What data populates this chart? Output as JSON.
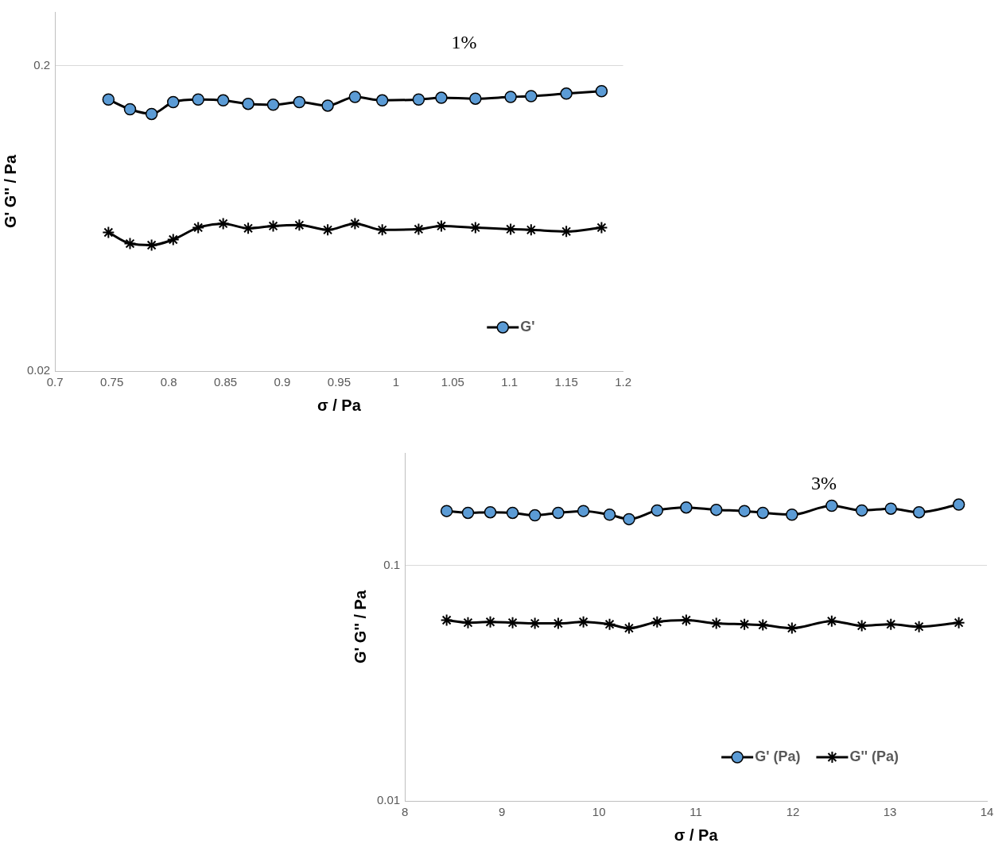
{
  "chart_data": [
    {
      "type": "line",
      "title": "1%",
      "xlabel": "σ / Pa",
      "ylabel": "G' G'' / Pa",
      "log": "y",
      "grid": "y",
      "legend": "bottom right",
      "xlim": [
        0.7,
        1.2
      ],
      "xticks": [
        0.7,
        0.75,
        0.8,
        0.85,
        0.9,
        0.95,
        1,
        1.05,
        1.1,
        1.15,
        1.2
      ],
      "ylim": [
        0.02,
        0.3
      ],
      "yticks": [
        0.02,
        0.2
      ],
      "x": [
        0.747,
        0.766,
        0.785,
        0.804,
        0.826,
        0.848,
        0.87,
        0.892,
        0.915,
        0.94,
        0.964,
        0.988,
        1.02,
        1.04,
        1.07,
        1.101,
        1.119,
        1.15,
        1.181
      ],
      "series": [
        {
          "name": "G'",
          "color": "#5b9bd5",
          "marker": "circle",
          "values": [
            0.155,
            0.144,
            0.139,
            0.152,
            0.155,
            0.154,
            0.15,
            0.149,
            0.152,
            0.148,
            0.158,
            0.154,
            0.155,
            0.157,
            0.156,
            0.158,
            0.159,
            0.162,
            0.165
          ]
        },
        {
          "color": "#000000",
          "marker": "cross",
          "values": [
            0.0569,
            0.0523,
            0.0517,
            0.0539,
            0.059,
            0.0608,
            0.0587,
            0.0597,
            0.0601,
            0.058,
            0.0608,
            0.058,
            0.0583,
            0.0597,
            0.059,
            0.0583,
            0.058,
            0.0573,
            0.059
          ]
        }
      ]
    },
    {
      "type": "line",
      "title": "3%",
      "xlabel": "σ / Pa",
      "ylabel": "G' G'' / Pa",
      "log": "y",
      "grid": "y",
      "legend": "bottom right",
      "xlim": [
        8,
        14
      ],
      "xticks": [
        8,
        9,
        10,
        11,
        12,
        13,
        14
      ],
      "ylim": [
        0.01,
        0.3
      ],
      "yticks": [
        0.01,
        0.1
      ],
      "x": [
        8.43,
        8.65,
        8.88,
        9.11,
        9.34,
        9.58,
        9.84,
        10.11,
        10.31,
        10.6,
        10.9,
        11.21,
        11.5,
        11.69,
        11.99,
        12.4,
        12.71,
        13.01,
        13.3,
        13.71
      ],
      "series": [
        {
          "name": "G' (Pa)",
          "color": "#5b9bd5",
          "marker": "circle",
          "values": [
            0.17,
            0.167,
            0.168,
            0.167,
            0.163,
            0.167,
            0.17,
            0.164,
            0.157,
            0.171,
            0.176,
            0.172,
            0.17,
            0.167,
            0.164,
            0.179,
            0.171,
            0.174,
            0.168,
            0.181
          ]
        },
        {
          "name": "G'' (Pa)",
          "color": "#000000",
          "marker": "cross",
          "values": [
            0.0585,
            0.0571,
            0.0575,
            0.0571,
            0.0567,
            0.0567,
            0.0575,
            0.0562,
            0.0541,
            0.0575,
            0.0585,
            0.0567,
            0.0562,
            0.0558,
            0.0541,
            0.058,
            0.0554,
            0.0562,
            0.0549,
            0.0571
          ]
        }
      ]
    }
  ]
}
